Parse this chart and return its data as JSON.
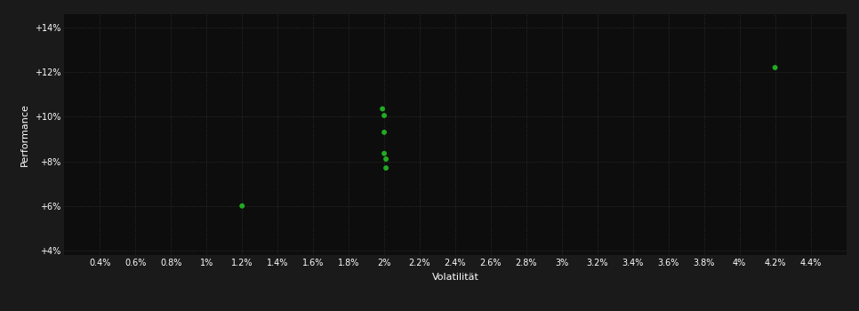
{
  "background_color": "#1a1a1a",
  "plot_bg_color": "#0d0d0d",
  "grid_color": "#333333",
  "text_color": "#ffffff",
  "point_color": "#22aa22",
  "xlabel": "Volatilität",
  "ylabel": "Performance",
  "xlim": [
    0.002,
    0.046
  ],
  "ylim": [
    0.038,
    0.146
  ],
  "xtick_values": [
    0.004,
    0.006,
    0.008,
    0.01,
    0.012,
    0.014,
    0.016,
    0.018,
    0.02,
    0.022,
    0.024,
    0.026,
    0.028,
    0.03,
    0.032,
    0.034,
    0.036,
    0.038,
    0.04,
    0.042,
    0.044
  ],
  "ytick_values": [
    0.04,
    0.06,
    0.08,
    0.1,
    0.12,
    0.14
  ],
  "points_x": [
    0.012,
    0.0199,
    0.02,
    0.02,
    0.02,
    0.0201,
    0.0201,
    0.042
  ],
  "points_y": [
    0.06,
    0.1035,
    0.1005,
    0.093,
    0.0835,
    0.081,
    0.077,
    0.122
  ],
  "marker_size": 18
}
